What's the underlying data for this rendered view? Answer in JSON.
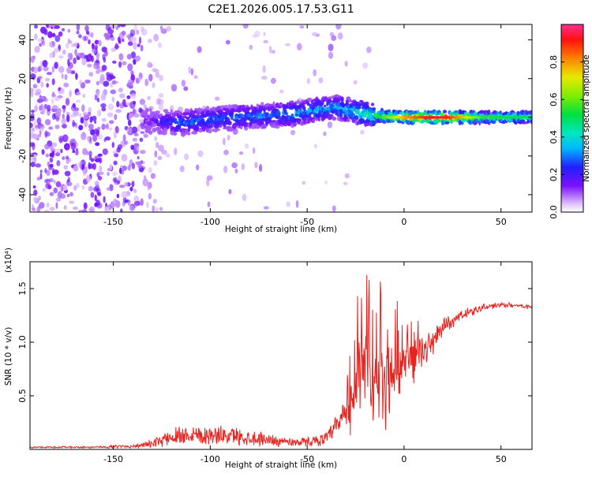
{
  "page": {
    "title": "C2E1.2026.005.17.53.G11"
  },
  "chart_data": [
    {
      "type": "heatmap",
      "xlabel": "Height of straight line (km)",
      "ylabel": "Frequency (Hz)",
      "xlim": [
        -193,
        66
      ],
      "ylim": [
        -49,
        48
      ],
      "xticks": [
        -150,
        -100,
        -50,
        0,
        50
      ],
      "yticks": [
        -40,
        -20,
        0,
        20,
        40
      ],
      "colorbar": {
        "label": "Normalized spectral amplitude",
        "range": [
          0.0,
          1.0
        ],
        "ticks": [
          "0.0",
          "0.2",
          "0.4",
          "0.6",
          "0.8"
        ],
        "tick_values": [
          0.0,
          0.2,
          0.4,
          0.6,
          0.8
        ]
      },
      "ridge": {
        "x": [
          -130,
          -115,
          -100,
          -85,
          -70,
          -55,
          -45,
          -35,
          -25,
          -15,
          -5,
          0,
          10,
          20,
          40,
          66
        ],
        "freq": [
          -2,
          -3,
          -1,
          0,
          1,
          2,
          4,
          5,
          3,
          1,
          0,
          0,
          0,
          0,
          0,
          0
        ],
        "amplitude": [
          0.15,
          0.3,
          0.3,
          0.3,
          0.3,
          0.35,
          0.35,
          0.35,
          0.4,
          0.5,
          0.7,
          0.8,
          0.9,
          0.95,
          0.55,
          0.5
        ]
      },
      "grid": false
    },
    {
      "type": "line",
      "xlabel": "Height of straight line (km)",
      "ylabel": "SNR (10 * v/v)",
      "y_multiplier": "(x10⁴)",
      "xlim": [
        -193,
        66
      ],
      "ylim": [
        0,
        1.75
      ],
      "xticks": [
        -150,
        -100,
        -50,
        0,
        50
      ],
      "yticks": [
        0.5,
        1.0,
        1.5
      ],
      "ytick_labels": [
        "0.5",
        "1.0",
        "1.5"
      ],
      "series": [
        {
          "color": "#e8231f",
          "x": [
            -193,
            -180,
            -160,
            -140,
            -130,
            -120,
            -110,
            -100,
            -90,
            -80,
            -70,
            -60,
            -50,
            -40,
            -35,
            -30,
            -25,
            -20,
            -15,
            -10,
            -5,
            0,
            5,
            10,
            15,
            20,
            30,
            40,
            50,
            66
          ],
          "values": [
            0.02,
            0.02,
            0.02,
            0.03,
            0.05,
            0.12,
            0.15,
            0.13,
            0.13,
            0.11,
            0.09,
            0.07,
            0.07,
            0.1,
            0.2,
            0.35,
            0.55,
            0.7,
            0.65,
            0.6,
            0.75,
            0.8,
            0.85,
            0.9,
            1.0,
            1.15,
            1.25,
            1.32,
            1.35,
            1.33
          ],
          "noise": [
            0.01,
            0.01,
            0.01,
            0.02,
            0.04,
            0.1,
            0.12,
            0.1,
            0.1,
            0.09,
            0.07,
            0.05,
            0.05,
            0.07,
            0.15,
            0.3,
            0.45,
            0.5,
            0.45,
            0.5,
            0.35,
            0.25,
            0.25,
            0.2,
            0.15,
            0.1,
            0.06,
            0.04,
            0.03,
            0.03
          ]
        }
      ],
      "grid": false
    }
  ]
}
